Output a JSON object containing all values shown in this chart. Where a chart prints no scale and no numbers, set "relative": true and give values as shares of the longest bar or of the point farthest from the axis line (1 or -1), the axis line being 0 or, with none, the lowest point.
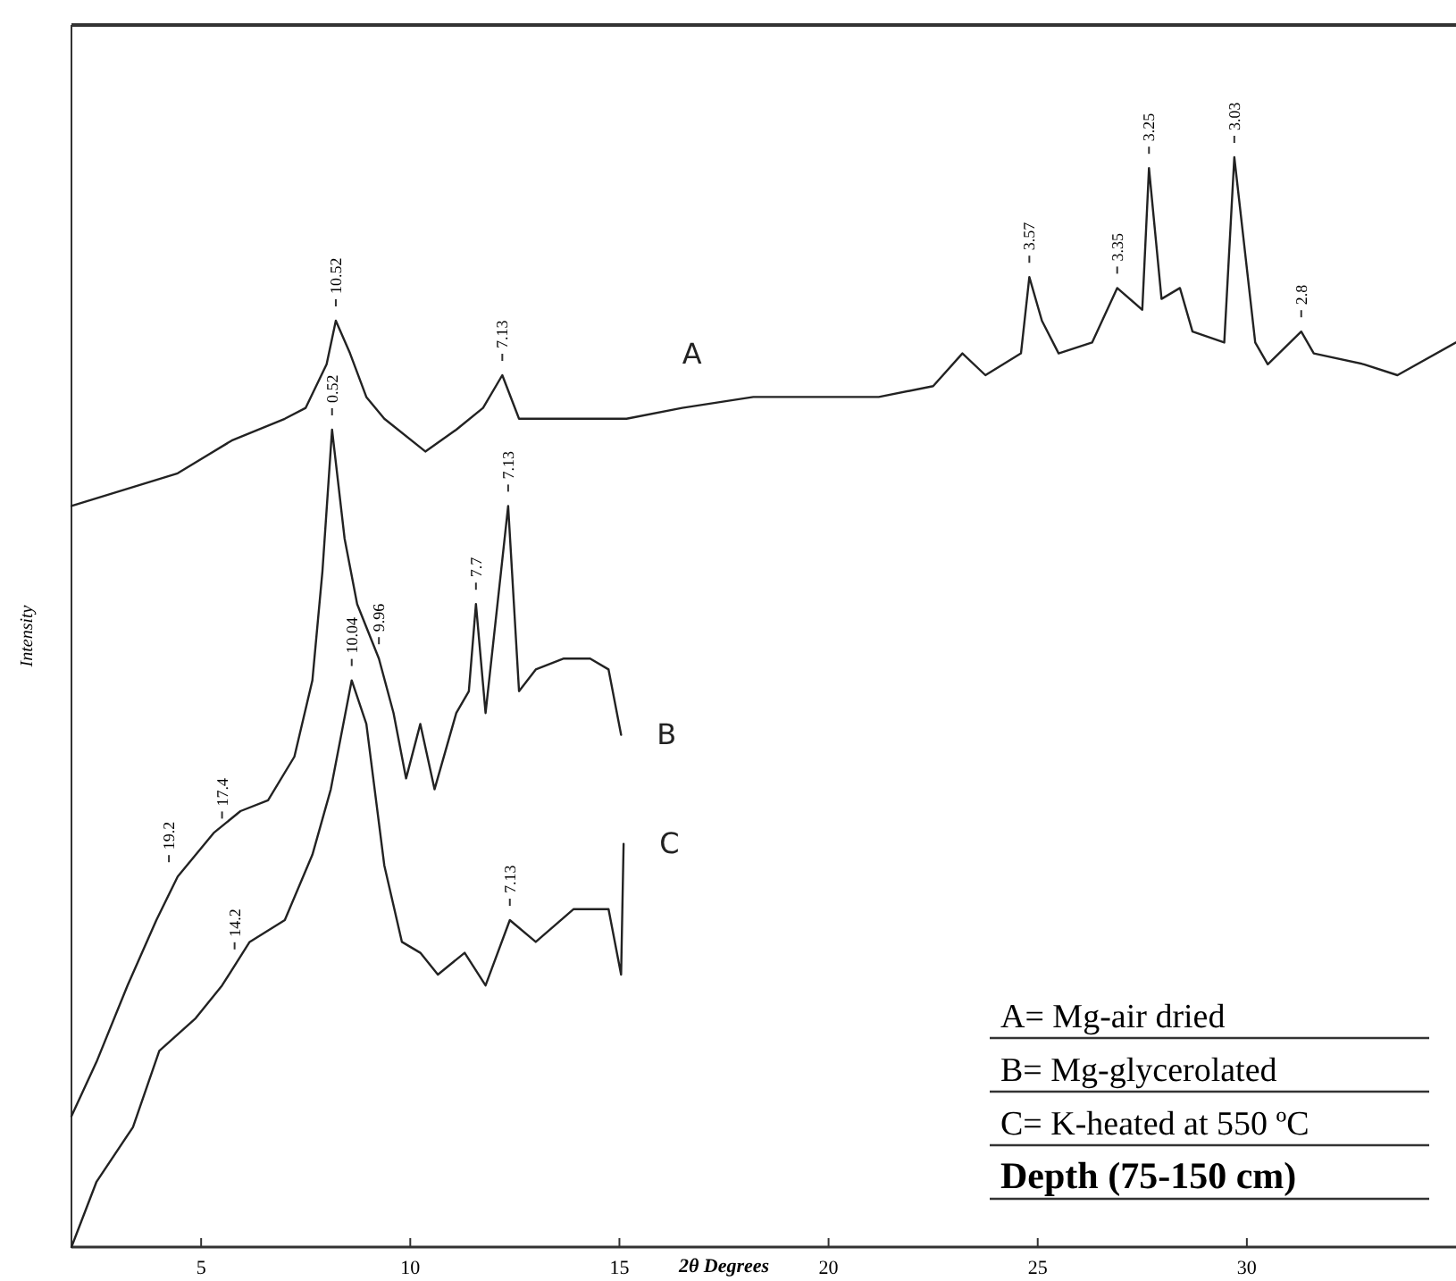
{
  "chart_data": {
    "type": "line",
    "relative": true,
    "xlabel": "2θ Degrees",
    "ylabel": "Intensity",
    "xlim": [
      1.9,
      35
    ],
    "xticks": [
      5,
      10,
      15,
      20,
      25,
      30
    ],
    "legend": false,
    "grid": false,
    "marker": "none",
    "line_style": "solid",
    "series": [
      {
        "name": "A",
        "color": "#222222",
        "x": [
          1.9,
          4.44,
          5.73,
          7.0,
          7.5,
          8.0,
          8.22,
          8.56,
          8.95,
          9.38,
          10.36,
          11.1,
          11.74,
          12.2,
          12.6,
          13.45,
          15.17,
          16.5,
          18.2,
          19.5,
          21.2,
          22.5,
          23.2,
          23.75,
          24.6,
          24.8,
          25.1,
          25.5,
          26.3,
          26.9,
          27.5,
          27.66,
          27.96,
          28.4,
          28.7,
          29.46,
          29.7,
          30.2,
          30.5,
          31.3,
          31.6,
          32.8,
          33.6,
          35.0
        ],
        "values": [
          0.68,
          0.71,
          0.74,
          0.76,
          0.77,
          0.81,
          0.85,
          0.82,
          0.78,
          0.76,
          0.73,
          0.75,
          0.77,
          0.8,
          0.76,
          0.76,
          0.76,
          0.77,
          0.78,
          0.78,
          0.78,
          0.79,
          0.82,
          0.8,
          0.82,
          0.89,
          0.85,
          0.82,
          0.83,
          0.88,
          0.86,
          0.99,
          0.87,
          0.88,
          0.84,
          0.83,
          1.0,
          0.83,
          0.81,
          0.84,
          0.82,
          0.81,
          0.8,
          0.83
        ]
      },
      {
        "name": "B",
        "color": "#222222",
        "x": [
          1.9,
          2.5,
          3.24,
          3.93,
          4.44,
          5.3,
          5.94,
          6.6,
          7.23,
          7.66,
          7.9,
          8.13,
          8.43,
          8.73,
          9.25,
          9.6,
          9.9,
          10.24,
          10.58,
          11.1,
          11.4,
          11.57,
          11.8,
          12.17,
          12.34,
          12.6,
          13.0,
          13.67,
          14.3,
          14.74,
          15.04
        ],
        "values": [
          0.12,
          0.17,
          0.24,
          0.3,
          0.34,
          0.38,
          0.4,
          0.41,
          0.45,
          0.52,
          0.62,
          0.75,
          0.65,
          0.59,
          0.54,
          0.49,
          0.43,
          0.48,
          0.42,
          0.49,
          0.51,
          0.59,
          0.49,
          0.62,
          0.68,
          0.51,
          0.53,
          0.54,
          0.54,
          0.53,
          0.47
        ]
      },
      {
        "name": "C",
        "color": "#222222",
        "x": [
          1.9,
          2.5,
          3.37,
          4.0,
          4.87,
          5.5,
          6.16,
          7.0,
          7.66,
          8.1,
          8.6,
          8.95,
          9.38,
          9.8,
          10.24,
          10.66,
          11.3,
          11.8,
          12.38,
          13.0,
          13.9,
          14.74,
          15.04,
          15.1
        ],
        "values": [
          0.0,
          0.06,
          0.11,
          0.18,
          0.21,
          0.24,
          0.28,
          0.3,
          0.36,
          0.42,
          0.52,
          0.48,
          0.35,
          0.28,
          0.27,
          0.25,
          0.27,
          0.24,
          0.3,
          0.28,
          0.31,
          0.31,
          0.25,
          0.37
        ]
      }
    ],
    "annotations": [
      {
        "text": "10.52",
        "x": 8.22,
        "y": 0.85
      },
      {
        "text": "7.13",
        "x": 12.2,
        "y": 0.8
      },
      {
        "text": "3.57",
        "x": 24.8,
        "y": 0.89
      },
      {
        "text": "3.35",
        "x": 26.9,
        "y": 0.88
      },
      {
        "text": "3.25",
        "x": 27.66,
        "y": 0.99
      },
      {
        "text": "3.03",
        "x": 29.7,
        "y": 1.0
      },
      {
        "text": "2.8",
        "x": 31.3,
        "y": 0.84
      },
      {
        "text": "0.52",
        "x": 8.13,
        "y": 0.75
      },
      {
        "text": "9.96",
        "x": 9.25,
        "y": 0.54
      },
      {
        "text": "7.7",
        "x": 11.57,
        "y": 0.59
      },
      {
        "text": "7.13",
        "x": 12.34,
        "y": 0.68
      },
      {
        "text": "19.2",
        "x": 4.23,
        "y": 0.34
      },
      {
        "text": "17.4",
        "x": 5.5,
        "y": 0.38
      },
      {
        "text": "10.04",
        "x": 8.6,
        "y": 0.52
      },
      {
        "text": "14.2",
        "x": 5.8,
        "y": 0.26
      },
      {
        "text": "7.13",
        "x": 12.38,
        "y": 0.3
      },
      "A= Mg-air dried",
      "B= Mg-glycerolated",
      "C= K-heated at 550 ºC",
      "Depth (75-150 cm)"
    ]
  }
}
